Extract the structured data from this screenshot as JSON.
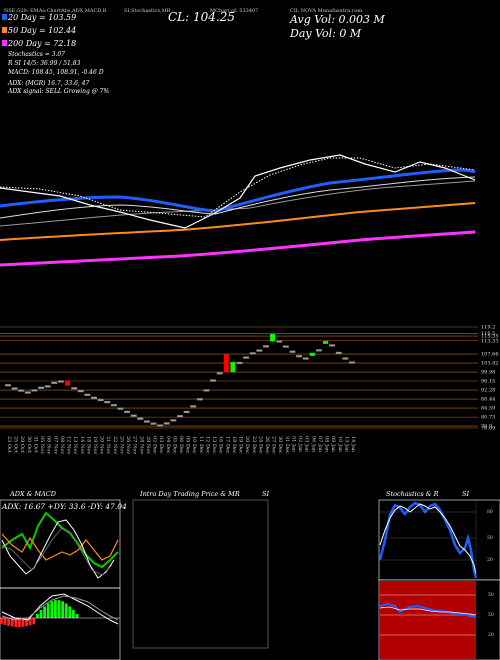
{
  "header": {
    "ticker_line": "NSE:520: EMAs:ChartAbs,ADX,MACD,B",
    "ticker_line2": "SI,Stochastics,MR",
    "chart_of": "MChart of: 533407",
    "series_name": "CIL NOVA Munafasutra.com",
    "cl_label": "CL: 104.25",
    "avg_vol": "Avg Vol: 0.003 M",
    "day_vol": "Day Vol: 0   M"
  },
  "legend": {
    "dma20": "20   Day = 103.59",
    "dma50": "50   Day = 102.44",
    "dma200": "200  Day = 72.18",
    "stoch": "Stochastics = 3.07",
    "rsi": "R        SI 14/5: 36.99 / 51.83",
    "macd": "MACD: 108.45, 108.91, -0.46  D",
    "adx": "ADX:                    (MGR) 16.7, 33.6, 47",
    "adx_signal": "ADX  signal: SELL Growing @ 7%"
  },
  "panels": {
    "adx_macd_title": "ADX  & MACD",
    "intraday_title": "Intra  Day Trading Price  & MR",
    "intraday_si": "SI",
    "stoch_title": "Stochastics & R",
    "stoch_si": "SI",
    "adx_readout": "ADX: 16.67 +DY: 33.6 -DY: 47.04"
  },
  "chart_data": {
    "type": "line",
    "price_axis": [
      "119.2",
      "116.5",
      "115.35",
      "113.33",
      "107.66",
      "103.82",
      "99.98",
      "96.15",
      "92.28",
      "88.44",
      "84.59",
      "80.73",
      "76.9",
      "76.09"
    ],
    "x_labels": [
      "23 Oct",
      "25 Oct",
      "29 Oct",
      "30 Oct",
      "31 Oct",
      "05 Nov",
      "06 Nov",
      "07 Nov",
      "08 Nov",
      "12 Nov",
      "13 Nov",
      "14 Nov",
      "18 Nov",
      "19 Nov",
      "20 Nov",
      "21 Nov",
      "22 Nov",
      "25 Nov",
      "26 Nov",
      "27 Nov",
      "28 Nov",
      "29 Nov",
      "02 Dec",
      "03 Dec",
      "04 Dec",
      "05 Dec",
      "06 Dec",
      "09 Dec",
      "10 Dec",
      "11 Dec",
      "12 Dec",
      "13 Dec",
      "16 Dec",
      "17 Dec",
      "18 Dec",
      "19 Dec",
      "20 Dec",
      "23 Dec",
      "24 Dec",
      "26 Dec",
      "27 Dec",
      "30 Dec",
      "31 Dec",
      "01 Jan",
      "02 Jan",
      "03 Jan",
      "06 Jan",
      "07 Jan",
      "08 Jan",
      "09 Jan",
      "10 Jan",
      "13 Jan",
      "14 Jan"
    ],
    "candles": [
      {
        "o": 94.6,
        "c": 94.5
      },
      {
        "o": 93.2,
        "c": 93.1
      },
      {
        "o": 92.3,
        "c": 92.2
      },
      {
        "o": 91.5,
        "c": 91.4
      },
      {
        "o": 92.4,
        "c": 92.3
      },
      {
        "o": 93.5,
        "c": 93.4
      },
      {
        "o": 94.1,
        "c": 94.0
      },
      {
        "o": 95.6,
        "c": 95.5
      },
      {
        "o": 96.2,
        "c": 96.1
      },
      {
        "o": 96.4,
        "c": 94.2
      },
      {
        "o": 93.3,
        "c": 93.2
      },
      {
        "o": 92.1,
        "c": 92.0
      },
      {
        "o": 90.5,
        "c": 90.4
      },
      {
        "o": 89.2,
        "c": 89.1
      },
      {
        "o": 88.3,
        "c": 88.2
      },
      {
        "o": 87.4,
        "c": 87.3
      },
      {
        "o": 86.1,
        "c": 86.0
      },
      {
        "o": 84.6,
        "c": 84.5
      },
      {
        "o": 83.2,
        "c": 83.1
      },
      {
        "o": 81.6,
        "c": 81.5
      },
      {
        "o": 80.3,
        "c": 80.2
      },
      {
        "o": 79.1,
        "c": 79.0
      },
      {
        "o": 78.2,
        "c": 78.1
      },
      {
        "o": 77.4,
        "c": 77.3
      },
      {
        "o": 78.3,
        "c": 78.2
      },
      {
        "o": 79.6,
        "c": 79.5
      },
      {
        "o": 81.4,
        "c": 81.3
      },
      {
        "o": 83.2,
        "c": 83.1
      },
      {
        "o": 85.6,
        "c": 85.5
      },
      {
        "o": 88.6,
        "c": 88.5
      },
      {
        "o": 92.4,
        "c": 92.3
      },
      {
        "o": 96.6,
        "c": 96.5
      },
      {
        "o": 99.7,
        "c": 99.6
      },
      {
        "o": 107.5,
        "c": 99.8
      },
      {
        "o": 99.9,
        "c": 104.3
      },
      {
        "o": 104.1,
        "c": 104.0
      },
      {
        "o": 106.4,
        "c": 106.3
      },
      {
        "o": 108.2,
        "c": 108.1
      },
      {
        "o": 109.4,
        "c": 109.3
      },
      {
        "o": 111.2,
        "c": 111.1
      },
      {
        "o": 113.0,
        "c": 116.2
      },
      {
        "o": 113.3,
        "c": 113.2
      },
      {
        "o": 111.1,
        "c": 111.0
      },
      {
        "o": 108.9,
        "c": 108.8
      },
      {
        "o": 107.0,
        "c": 106.9
      },
      {
        "o": 106.0,
        "c": 105.9
      },
      {
        "o": 106.9,
        "c": 108.2
      },
      {
        "o": 109.5,
        "c": 109.4
      },
      {
        "o": 112.0,
        "c": 113.2
      },
      {
        "o": 111.6,
        "c": 111.5
      },
      {
        "o": 108.4,
        "c": 108.3
      },
      {
        "o": 106.0,
        "c": 105.9
      },
      {
        "o": 104.3,
        "c": 104.2
      }
    ]
  },
  "colors": {
    "ema_fast": "#1f5fff",
    "ema_orange": "#ff8c1a",
    "ema_magenta": "#ff33ff",
    "price_line": "#ffffff",
    "grid_orange": "#b86a1a",
    "up_candle": "#00ff00",
    "down_candle": "#ff0000"
  }
}
